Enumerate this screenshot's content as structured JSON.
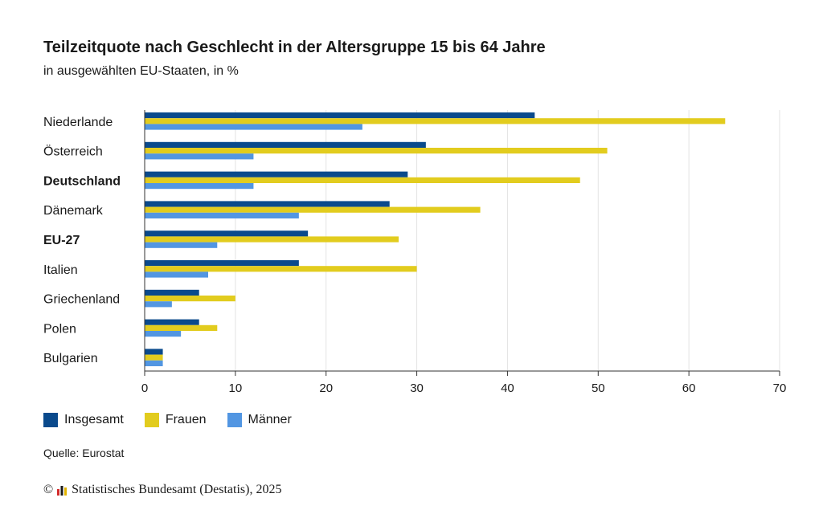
{
  "header": {
    "title": "Teilzeitquote nach Geschlecht in der Altersgruppe 15 bis 64 Jahre",
    "subtitle": "in ausgewählten EU-Staaten, in %"
  },
  "chart_data": {
    "type": "bar",
    "orientation": "horizontal",
    "title": "Teilzeitquote nach Geschlecht in der Altersgruppe 15 bis 64 Jahre",
    "subtitle": "in ausgewählten EU-Staaten, in %",
    "categories": [
      "Niederlande",
      "Österreich",
      "Deutschland",
      "Dänemark",
      "EU-27",
      "Italien",
      "Griechenland",
      "Polen",
      "Bulgarien"
    ],
    "bold_categories": [
      "Deutschland",
      "EU-27"
    ],
    "series": [
      {
        "name": "Insgesamt",
        "color": "#0a4a8c",
        "values": [
          43,
          31,
          29,
          27,
          18,
          17,
          6,
          6,
          2
        ]
      },
      {
        "name": "Frauen",
        "color": "#e2cc1e",
        "values": [
          64,
          51,
          48,
          37,
          28,
          30,
          10,
          8,
          2
        ]
      },
      {
        "name": "Männer",
        "color": "#5296e2",
        "values": [
          24,
          12,
          12,
          17,
          8,
          7,
          3,
          4,
          2
        ]
      }
    ],
    "xlim": [
      0,
      70
    ],
    "xticks": [
      "0",
      "10",
      "20",
      "30",
      "40",
      "50",
      "60",
      "70"
    ],
    "grid": true,
    "legend_position": "bottom-left"
  },
  "legend": [
    {
      "label": "Insgesamt",
      "color": "#0a4a8c"
    },
    {
      "label": "Frauen",
      "color": "#e2cc1e"
    },
    {
      "label": "Männer",
      "color": "#5296e2"
    }
  ],
  "source": "Quelle: Eurostat",
  "footer": {
    "copyright_symbol": "©",
    "logo_icon": "destatis-logo-icon",
    "text": "Statistisches Bundesamt (Destatis), 2025"
  }
}
